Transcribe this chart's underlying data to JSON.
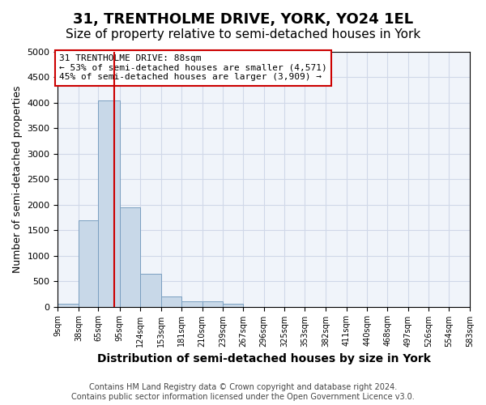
{
  "title": "31, TRENTHOLME DRIVE, YORK, YO24 1EL",
  "subtitle": "Size of property relative to semi-detached houses in York",
  "xlabel": "Distribution of semi-detached houses by size in York",
  "ylabel": "Number of semi-detached properties",
  "footer_line1": "Contains HM Land Registry data © Crown copyright and database right 2024.",
  "footer_line2": "Contains public sector information licensed under the Open Government Licence v3.0.",
  "bins": [
    9,
    38,
    65,
    95,
    124,
    153,
    181,
    210,
    239,
    267,
    296,
    325,
    353,
    382,
    411,
    440,
    468,
    497,
    526,
    554,
    583
  ],
  "bin_labels": [
    "9sqm",
    "38sqm",
    "65sqm",
    "95sqm",
    "124sqm",
    "153sqm",
    "181sqm",
    "210sqm",
    "239sqm",
    "267sqm",
    "296sqm",
    "325sqm",
    "353sqm",
    "382sqm",
    "411sqm",
    "440sqm",
    "468sqm",
    "497sqm",
    "526sqm",
    "554sqm",
    "583sqm"
  ],
  "counts": [
    50,
    1700,
    4050,
    1950,
    650,
    200,
    100,
    100,
    50,
    0,
    0,
    0,
    0,
    0,
    0,
    0,
    0,
    0,
    0,
    0
  ],
  "bar_color": "#c8d8e8",
  "bar_edge_color": "#7a9fc0",
  "property_size": 88,
  "red_line_color": "#cc0000",
  "annotation_text": "31 TRENTHOLME DRIVE: 88sqm\n← 53% of semi-detached houses are smaller (4,571)\n45% of semi-detached houses are larger (3,909) →",
  "ylim": [
    0,
    5000
  ],
  "yticks": [
    0,
    500,
    1000,
    1500,
    2000,
    2500,
    3000,
    3500,
    4000,
    4500,
    5000
  ],
  "grid_color": "#d0d8e8",
  "background_color": "#f0f4fa",
  "title_fontsize": 13,
  "subtitle_fontsize": 11,
  "xlabel_fontsize": 10,
  "ylabel_fontsize": 9,
  "tick_fontsize": 7,
  "annotation_fontsize": 8,
  "footer_fontsize": 7
}
